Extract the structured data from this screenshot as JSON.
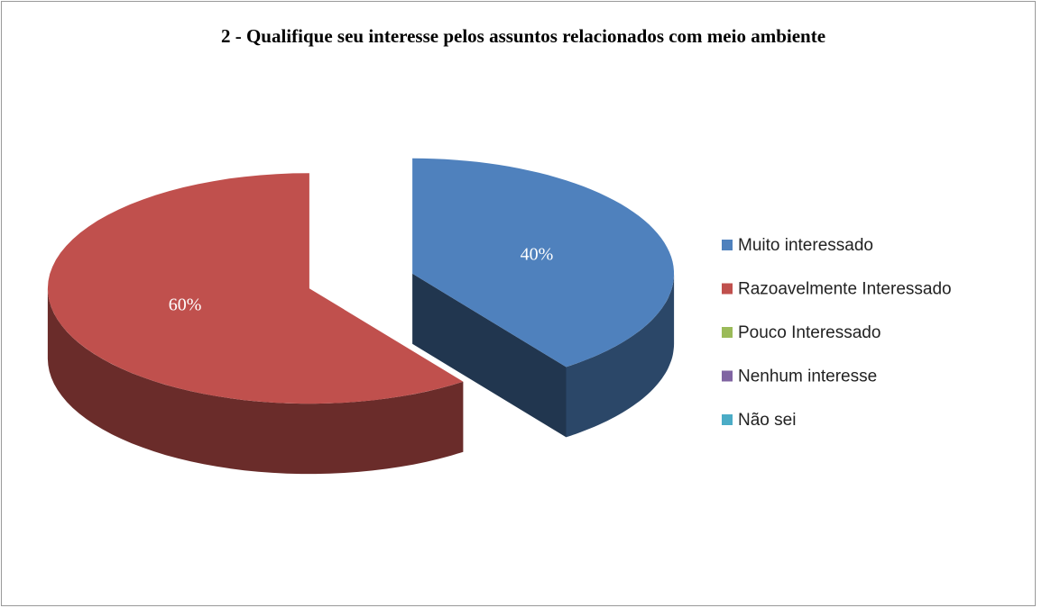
{
  "chart_data": {
    "type": "pie3d",
    "title": "2 - Qualifique seu interesse pelos assuntos relacionados com meio ambiente",
    "categories": [
      "Muito interessado",
      "Razoavelmente Interessado",
      "Pouco Interessado",
      "Nenhum interesse",
      "Não sei"
    ],
    "values": [
      40,
      60,
      0,
      0,
      0
    ],
    "value_labels": [
      "40%",
      "60%",
      null,
      null,
      null
    ],
    "colors": [
      "#4f81bd",
      "#c0504d",
      "#9bbb59",
      "#8064a2",
      "#4bacc6"
    ],
    "legend": "right"
  }
}
